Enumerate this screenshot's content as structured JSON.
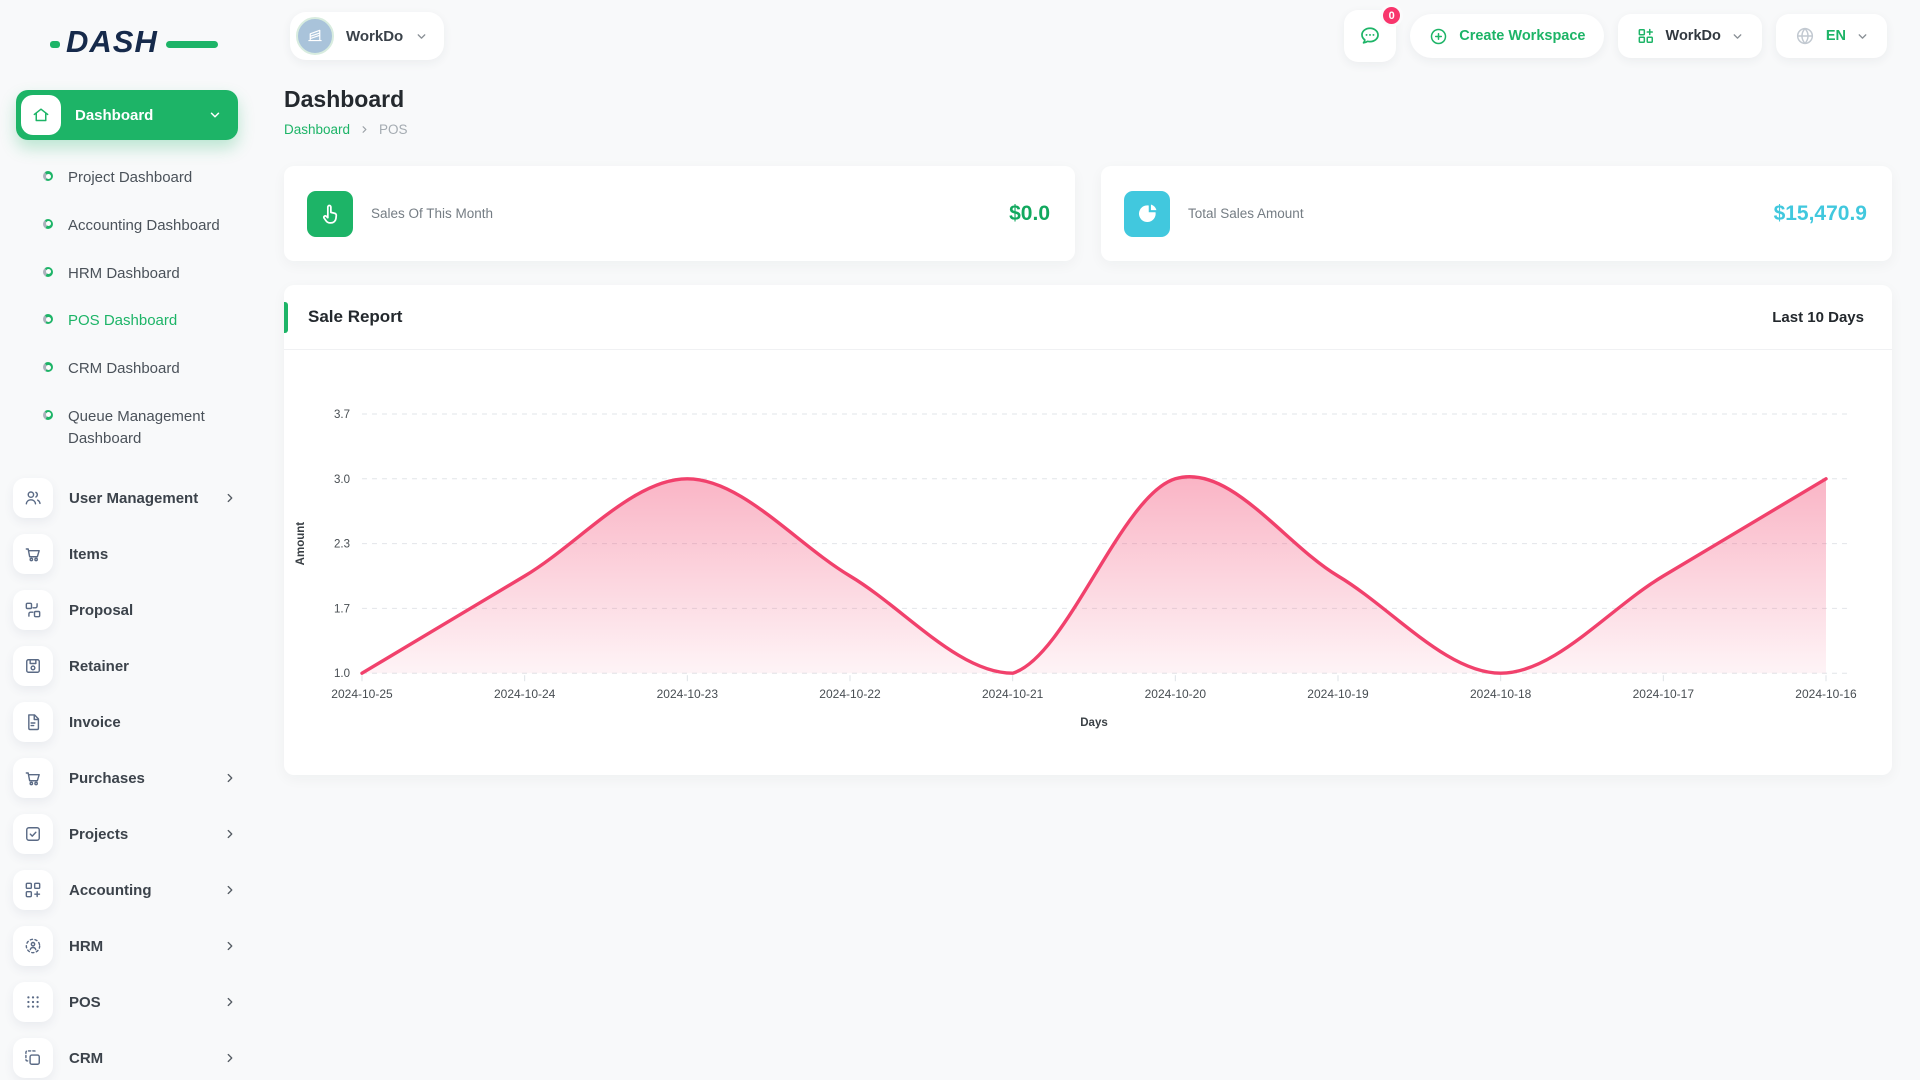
{
  "brand": {
    "name": "DASH"
  },
  "topbar": {
    "workspace_label": "WorkDo",
    "messages_badge": "0",
    "create_workspace_label": "Create Workspace",
    "app_switcher_label": "WorkDo",
    "language": "EN"
  },
  "sidebar": {
    "active_group": {
      "label": "Dashboard",
      "icon": "home-icon"
    },
    "dashboard_children": [
      {
        "label": "Project Dashboard",
        "active": false
      },
      {
        "label": "Accounting Dashboard",
        "active": false
      },
      {
        "label": "HRM Dashboard",
        "active": false
      },
      {
        "label": "POS Dashboard",
        "active": true
      },
      {
        "label": "CRM Dashboard",
        "active": false
      },
      {
        "label": "Queue Management Dashboard",
        "active": false
      }
    ],
    "items": [
      {
        "label": "User Management",
        "icon": "users-icon",
        "has_children": true
      },
      {
        "label": "Items",
        "icon": "cart-icon",
        "has_children": false
      },
      {
        "label": "Proposal",
        "icon": "workflow-icon",
        "has_children": false
      },
      {
        "label": "Retainer",
        "icon": "save-icon",
        "has_children": false
      },
      {
        "label": "Invoice",
        "icon": "file-text-icon",
        "has_children": false
      },
      {
        "label": "Purchases",
        "icon": "cart-icon",
        "has_children": true
      },
      {
        "label": "Projects",
        "icon": "check-square-icon",
        "has_children": true
      },
      {
        "label": "Accounting",
        "icon": "grid-plus-icon",
        "has_children": true
      },
      {
        "label": "HRM",
        "icon": "user-scan-icon",
        "has_children": true
      },
      {
        "label": "POS",
        "icon": "dots-grid-icon",
        "has_children": true
      },
      {
        "label": "CRM",
        "icon": "copy-icon",
        "has_children": true
      }
    ]
  },
  "page": {
    "title": "Dashboard",
    "breadcrumb": [
      "Dashboard",
      "POS"
    ]
  },
  "stats": [
    {
      "label": "Sales Of This Month",
      "value": "$0.0",
      "accent": "#1db467",
      "value_color": "#11a85e",
      "icon": "tap-icon"
    },
    {
      "label": "Total Sales Amount",
      "value": "$15,470.9",
      "accent": "#41c8de",
      "value_color": "#41c8de",
      "icon": "pie-icon"
    }
  ],
  "report": {
    "title": "Sale Report",
    "range_label": "Last 10 Days"
  },
  "chart_data": {
    "type": "area",
    "title": "Sale Report",
    "x": [
      "2024-10-25",
      "2024-10-24",
      "2024-10-23",
      "2024-10-22",
      "2024-10-21",
      "2024-10-20",
      "2024-10-19",
      "2024-10-18",
      "2024-10-17",
      "2024-10-16"
    ],
    "series": [
      {
        "name": "Amount",
        "values": [
          1,
          2,
          3,
          2,
          1,
          3,
          2,
          1,
          2,
          3
        ]
      }
    ],
    "xlabel": "Days",
    "ylabel": "Amount",
    "ylim": [
      1.0,
      3.67
    ],
    "ytick_labels": [
      "3.7",
      "3.0",
      "2.3",
      "1.7",
      "1.0"
    ],
    "grid": "horizontal-dashed",
    "legend": "none",
    "line_color": "#f1416c",
    "fill_color": "#f1416c",
    "tick_color": "#474d52"
  },
  "colors": {
    "primary_green": "#1db467",
    "cyan": "#41c8de",
    "pink": "#f1416c",
    "badge_pink": "#f8356c"
  }
}
